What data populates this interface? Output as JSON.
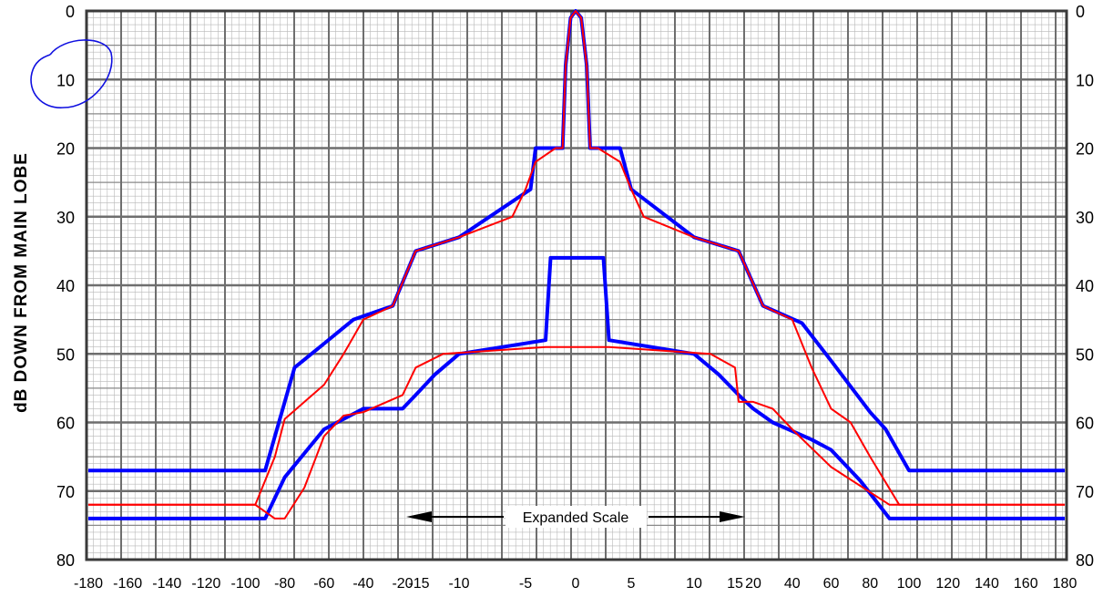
{
  "chart_data": {
    "type": "line",
    "title": "",
    "xlabel": "",
    "ylabel": "dB DOWN FROM MAIN LOBE",
    "ylim": [
      0,
      80
    ],
    "y_inverted": true,
    "y_ticks": [
      "0",
      "10",
      "20",
      "30",
      "40",
      "50",
      "60",
      "70",
      "80"
    ],
    "x_scale": "piecewise: outer sections 10 deg/small-division, center expanded ±17 deg",
    "x_ticks": [
      "-180",
      "-160",
      "-140",
      "-120",
      "-100",
      "-80",
      "-60",
      "-40",
      "-20",
      "-15",
      "-10",
      "-5",
      "0",
      "5",
      "10",
      "15",
      "20",
      "40",
      "60",
      "80",
      "100",
      "120",
      "140",
      "160",
      "180"
    ],
    "x_tick_values": [
      -180,
      -160,
      -140,
      -120,
      -100,
      -80,
      -60,
      -40,
      -20,
      -15,
      -10,
      -5,
      0,
      5,
      10,
      15,
      20,
      40,
      60,
      80,
      100,
      120,
      140,
      160,
      180
    ],
    "grid": true,
    "annotation": "Expanded Scale",
    "series": [
      {
        "color": "#0000ff",
        "style": "thick",
        "points": [
          [
            -180,
            67
          ],
          [
            -90,
            67
          ],
          [
            -75,
            52
          ],
          [
            -60,
            48.5
          ],
          [
            -45,
            45
          ],
          [
            -25,
            43
          ],
          [
            -16,
            35
          ],
          [
            -10,
            33
          ],
          [
            -4.5,
            26
          ],
          [
            -4,
            20
          ],
          [
            -1.3,
            20
          ],
          [
            -1,
            8
          ],
          [
            -0.5,
            1
          ],
          [
            0,
            0
          ],
          [
            0.5,
            1
          ],
          [
            1,
            8
          ],
          [
            1.3,
            20
          ],
          [
            4,
            20
          ],
          [
            5,
            26
          ],
          [
            10,
            33
          ],
          [
            16,
            35
          ],
          [
            25,
            43
          ],
          [
            45,
            45.5
          ],
          [
            60,
            51
          ],
          [
            80,
            58.5
          ],
          [
            88,
            61
          ],
          [
            100,
            67
          ],
          [
            180,
            67
          ]
        ]
      },
      {
        "color": "#ff0000",
        "style": "thin",
        "points": [
          [
            -180,
            72
          ],
          [
            -95,
            72
          ],
          [
            -85,
            65
          ],
          [
            -80,
            59.5
          ],
          [
            -60,
            54.5
          ],
          [
            -50,
            50
          ],
          [
            -40,
            45
          ],
          [
            -25,
            43
          ],
          [
            -16,
            35
          ],
          [
            -10,
            33
          ],
          [
            -6,
            30
          ],
          [
            -5,
            26
          ],
          [
            -4,
            22
          ],
          [
            -2,
            20
          ],
          [
            -1.3,
            20
          ],
          [
            -1,
            8
          ],
          [
            -0.5,
            1
          ],
          [
            0,
            0
          ],
          [
            0.5,
            1
          ],
          [
            1,
            8
          ],
          [
            1.3,
            20
          ],
          [
            2,
            20
          ],
          [
            4,
            22
          ],
          [
            5,
            26
          ],
          [
            6,
            30
          ],
          [
            10,
            33
          ],
          [
            16,
            35
          ],
          [
            25,
            43
          ],
          [
            40,
            45
          ],
          [
            50,
            52
          ],
          [
            60,
            58
          ],
          [
            70,
            60
          ],
          [
            80,
            65
          ],
          [
            95,
            72
          ],
          [
            180,
            72
          ]
        ]
      },
      {
        "color": "#0000ff",
        "style": "thick",
        "points": [
          [
            -180,
            74
          ],
          [
            -90,
            74
          ],
          [
            -80,
            68
          ],
          [
            -60,
            61
          ],
          [
            -40,
            58
          ],
          [
            -20,
            58
          ],
          [
            -16,
            56
          ],
          [
            -13,
            53
          ],
          [
            -10,
            50
          ],
          [
            -3,
            48
          ],
          [
            -2.5,
            36
          ],
          [
            2.5,
            36
          ],
          [
            3,
            48
          ],
          [
            10,
            50
          ],
          [
            13,
            53
          ],
          [
            16,
            56
          ],
          [
            20,
            58
          ],
          [
            30,
            60
          ],
          [
            50,
            62.5
          ],
          [
            60,
            64
          ],
          [
            75,
            68.5
          ],
          [
            90,
            74
          ],
          [
            180,
            74
          ]
        ]
      },
      {
        "color": "#ff0000",
        "style": "thin",
        "points": [
          [
            -180,
            72
          ],
          [
            -95,
            72
          ],
          [
            -85,
            74
          ],
          [
            -80,
            74
          ],
          [
            -70,
            69.5
          ],
          [
            -60,
            62
          ],
          [
            -50,
            59
          ],
          [
            -40,
            58.5
          ],
          [
            -20,
            56
          ],
          [
            -16,
            52
          ],
          [
            -12,
            50
          ],
          [
            -3,
            49
          ],
          [
            3,
            49
          ],
          [
            12,
            50
          ],
          [
            15,
            52
          ],
          [
            16,
            57
          ],
          [
            20,
            57
          ],
          [
            30,
            58
          ],
          [
            40,
            61
          ],
          [
            60,
            66.5
          ],
          [
            90,
            72
          ],
          [
            180,
            72
          ]
        ]
      }
    ]
  }
}
